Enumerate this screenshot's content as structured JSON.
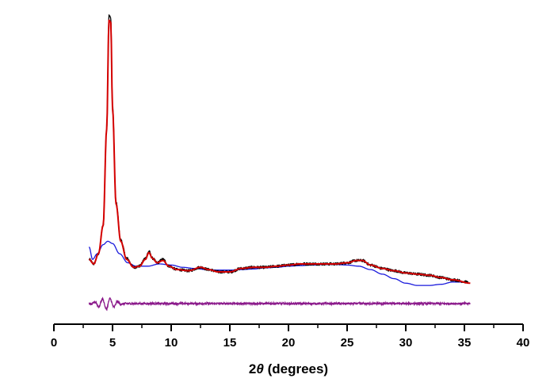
{
  "chart_data": {
    "type": "line",
    "xlabel": {
      "prefix": "2",
      "symbol": "θ",
      "suffix": " (degrees)"
    },
    "ylabel": "",
    "xlim": [
      0,
      40
    ],
    "x_ticks": [
      0,
      5,
      10,
      15,
      20,
      25,
      30,
      35,
      40
    ],
    "y_axis_visible": false,
    "grid": false,
    "legend": "none",
    "series": [
      {
        "role": "observed",
        "color": "#000000",
        "noise": 0.012,
        "points": [
          [
            3.0,
            0.25
          ],
          [
            3.4,
            0.21
          ],
          [
            3.8,
            0.3
          ],
          [
            4.2,
            0.55
          ],
          [
            4.5,
            1.4
          ],
          [
            4.7,
            2.4
          ],
          [
            4.85,
            2.38
          ],
          [
            5.0,
            1.6
          ],
          [
            5.3,
            0.75
          ],
          [
            5.7,
            0.42
          ],
          [
            6.2,
            0.26
          ],
          [
            6.8,
            0.18
          ],
          [
            7.3,
            0.19
          ],
          [
            7.8,
            0.26
          ],
          [
            8.1,
            0.32
          ],
          [
            8.4,
            0.26
          ],
          [
            8.8,
            0.22
          ],
          [
            9.3,
            0.25
          ],
          [
            9.8,
            0.19
          ],
          [
            10.5,
            0.16
          ],
          [
            11.5,
            0.15
          ],
          [
            12.5,
            0.18
          ],
          [
            13.2,
            0.16
          ],
          [
            14.0,
            0.14
          ],
          [
            15.0,
            0.14
          ],
          [
            16.0,
            0.17
          ],
          [
            17.0,
            0.18
          ],
          [
            18.0,
            0.18
          ],
          [
            19.0,
            0.19
          ],
          [
            20.0,
            0.2
          ],
          [
            21.0,
            0.21
          ],
          [
            22.0,
            0.21
          ],
          [
            23.0,
            0.21
          ],
          [
            24.0,
            0.21
          ],
          [
            25.0,
            0.22
          ],
          [
            25.8,
            0.24
          ],
          [
            26.3,
            0.24
          ],
          [
            27.0,
            0.2
          ],
          [
            28.0,
            0.17
          ],
          [
            29.0,
            0.15
          ],
          [
            30.0,
            0.13
          ],
          [
            31.0,
            0.12
          ],
          [
            32.0,
            0.11
          ],
          [
            33.0,
            0.09
          ],
          [
            34.0,
            0.07
          ],
          [
            35.3,
            0.05
          ]
        ]
      },
      {
        "role": "calculated",
        "color": "#d40000",
        "noise": 0,
        "points": [
          [
            3.0,
            0.25
          ],
          [
            3.4,
            0.21
          ],
          [
            3.8,
            0.3
          ],
          [
            4.2,
            0.55
          ],
          [
            4.5,
            1.4
          ],
          [
            4.7,
            2.36
          ],
          [
            4.85,
            2.34
          ],
          [
            5.0,
            1.58
          ],
          [
            5.3,
            0.74
          ],
          [
            5.7,
            0.41
          ],
          [
            6.2,
            0.25
          ],
          [
            6.8,
            0.18
          ],
          [
            7.3,
            0.19
          ],
          [
            7.8,
            0.25
          ],
          [
            8.1,
            0.31
          ],
          [
            8.4,
            0.26
          ],
          [
            8.8,
            0.22
          ],
          [
            9.3,
            0.24
          ],
          [
            9.8,
            0.19
          ],
          [
            10.5,
            0.16
          ],
          [
            11.5,
            0.15
          ],
          [
            12.5,
            0.18
          ],
          [
            13.2,
            0.16
          ],
          [
            14.0,
            0.14
          ],
          [
            15.0,
            0.14
          ],
          [
            16.0,
            0.17
          ],
          [
            17.0,
            0.18
          ],
          [
            18.0,
            0.18
          ],
          [
            19.0,
            0.19
          ],
          [
            20.0,
            0.2
          ],
          [
            21.0,
            0.21
          ],
          [
            22.0,
            0.21
          ],
          [
            23.0,
            0.21
          ],
          [
            24.0,
            0.21
          ],
          [
            25.0,
            0.22
          ],
          [
            25.8,
            0.24
          ],
          [
            26.3,
            0.24
          ],
          [
            27.0,
            0.2
          ],
          [
            28.0,
            0.17
          ],
          [
            29.0,
            0.15
          ],
          [
            30.0,
            0.13
          ],
          [
            31.0,
            0.12
          ],
          [
            32.0,
            0.11
          ],
          [
            33.0,
            0.09
          ],
          [
            34.0,
            0.07
          ],
          [
            35.5,
            0.04
          ]
        ]
      },
      {
        "role": "background",
        "color": "#1a1adc",
        "noise": 0,
        "points": [
          [
            3.0,
            0.36
          ],
          [
            3.3,
            0.25
          ],
          [
            3.7,
            0.3
          ],
          [
            4.2,
            0.38
          ],
          [
            4.6,
            0.41
          ],
          [
            5.0,
            0.39
          ],
          [
            5.6,
            0.3
          ],
          [
            6.3,
            0.22
          ],
          [
            7.0,
            0.19
          ],
          [
            8.0,
            0.19
          ],
          [
            9.0,
            0.21
          ],
          [
            10.0,
            0.2
          ],
          [
            11.0,
            0.18
          ],
          [
            12.0,
            0.17
          ],
          [
            13.0,
            0.16
          ],
          [
            14.0,
            0.155
          ],
          [
            15.0,
            0.155
          ],
          [
            16.0,
            0.16
          ],
          [
            17.0,
            0.165
          ],
          [
            18.0,
            0.175
          ],
          [
            19.0,
            0.18
          ],
          [
            20.0,
            0.19
          ],
          [
            21.0,
            0.195
          ],
          [
            22.0,
            0.2
          ],
          [
            23.0,
            0.205
          ],
          [
            24.0,
            0.205
          ],
          [
            25.0,
            0.2
          ],
          [
            26.0,
            0.19
          ],
          [
            27.0,
            0.16
          ],
          [
            28.0,
            0.12
          ],
          [
            29.0,
            0.08
          ],
          [
            30.0,
            0.04
          ],
          [
            31.0,
            0.02
          ],
          [
            32.0,
            0.02
          ],
          [
            33.0,
            0.03
          ],
          [
            34.0,
            0.05
          ],
          [
            35.0,
            0.05
          ]
        ]
      }
    ],
    "difference": {
      "role": "difference",
      "color": "#8b1a8b",
      "noise": 0.012,
      "range": [
        3.0,
        35.5
      ],
      "oscillation": {
        "until": 6.0,
        "amplitude": 0.07
      }
    }
  }
}
